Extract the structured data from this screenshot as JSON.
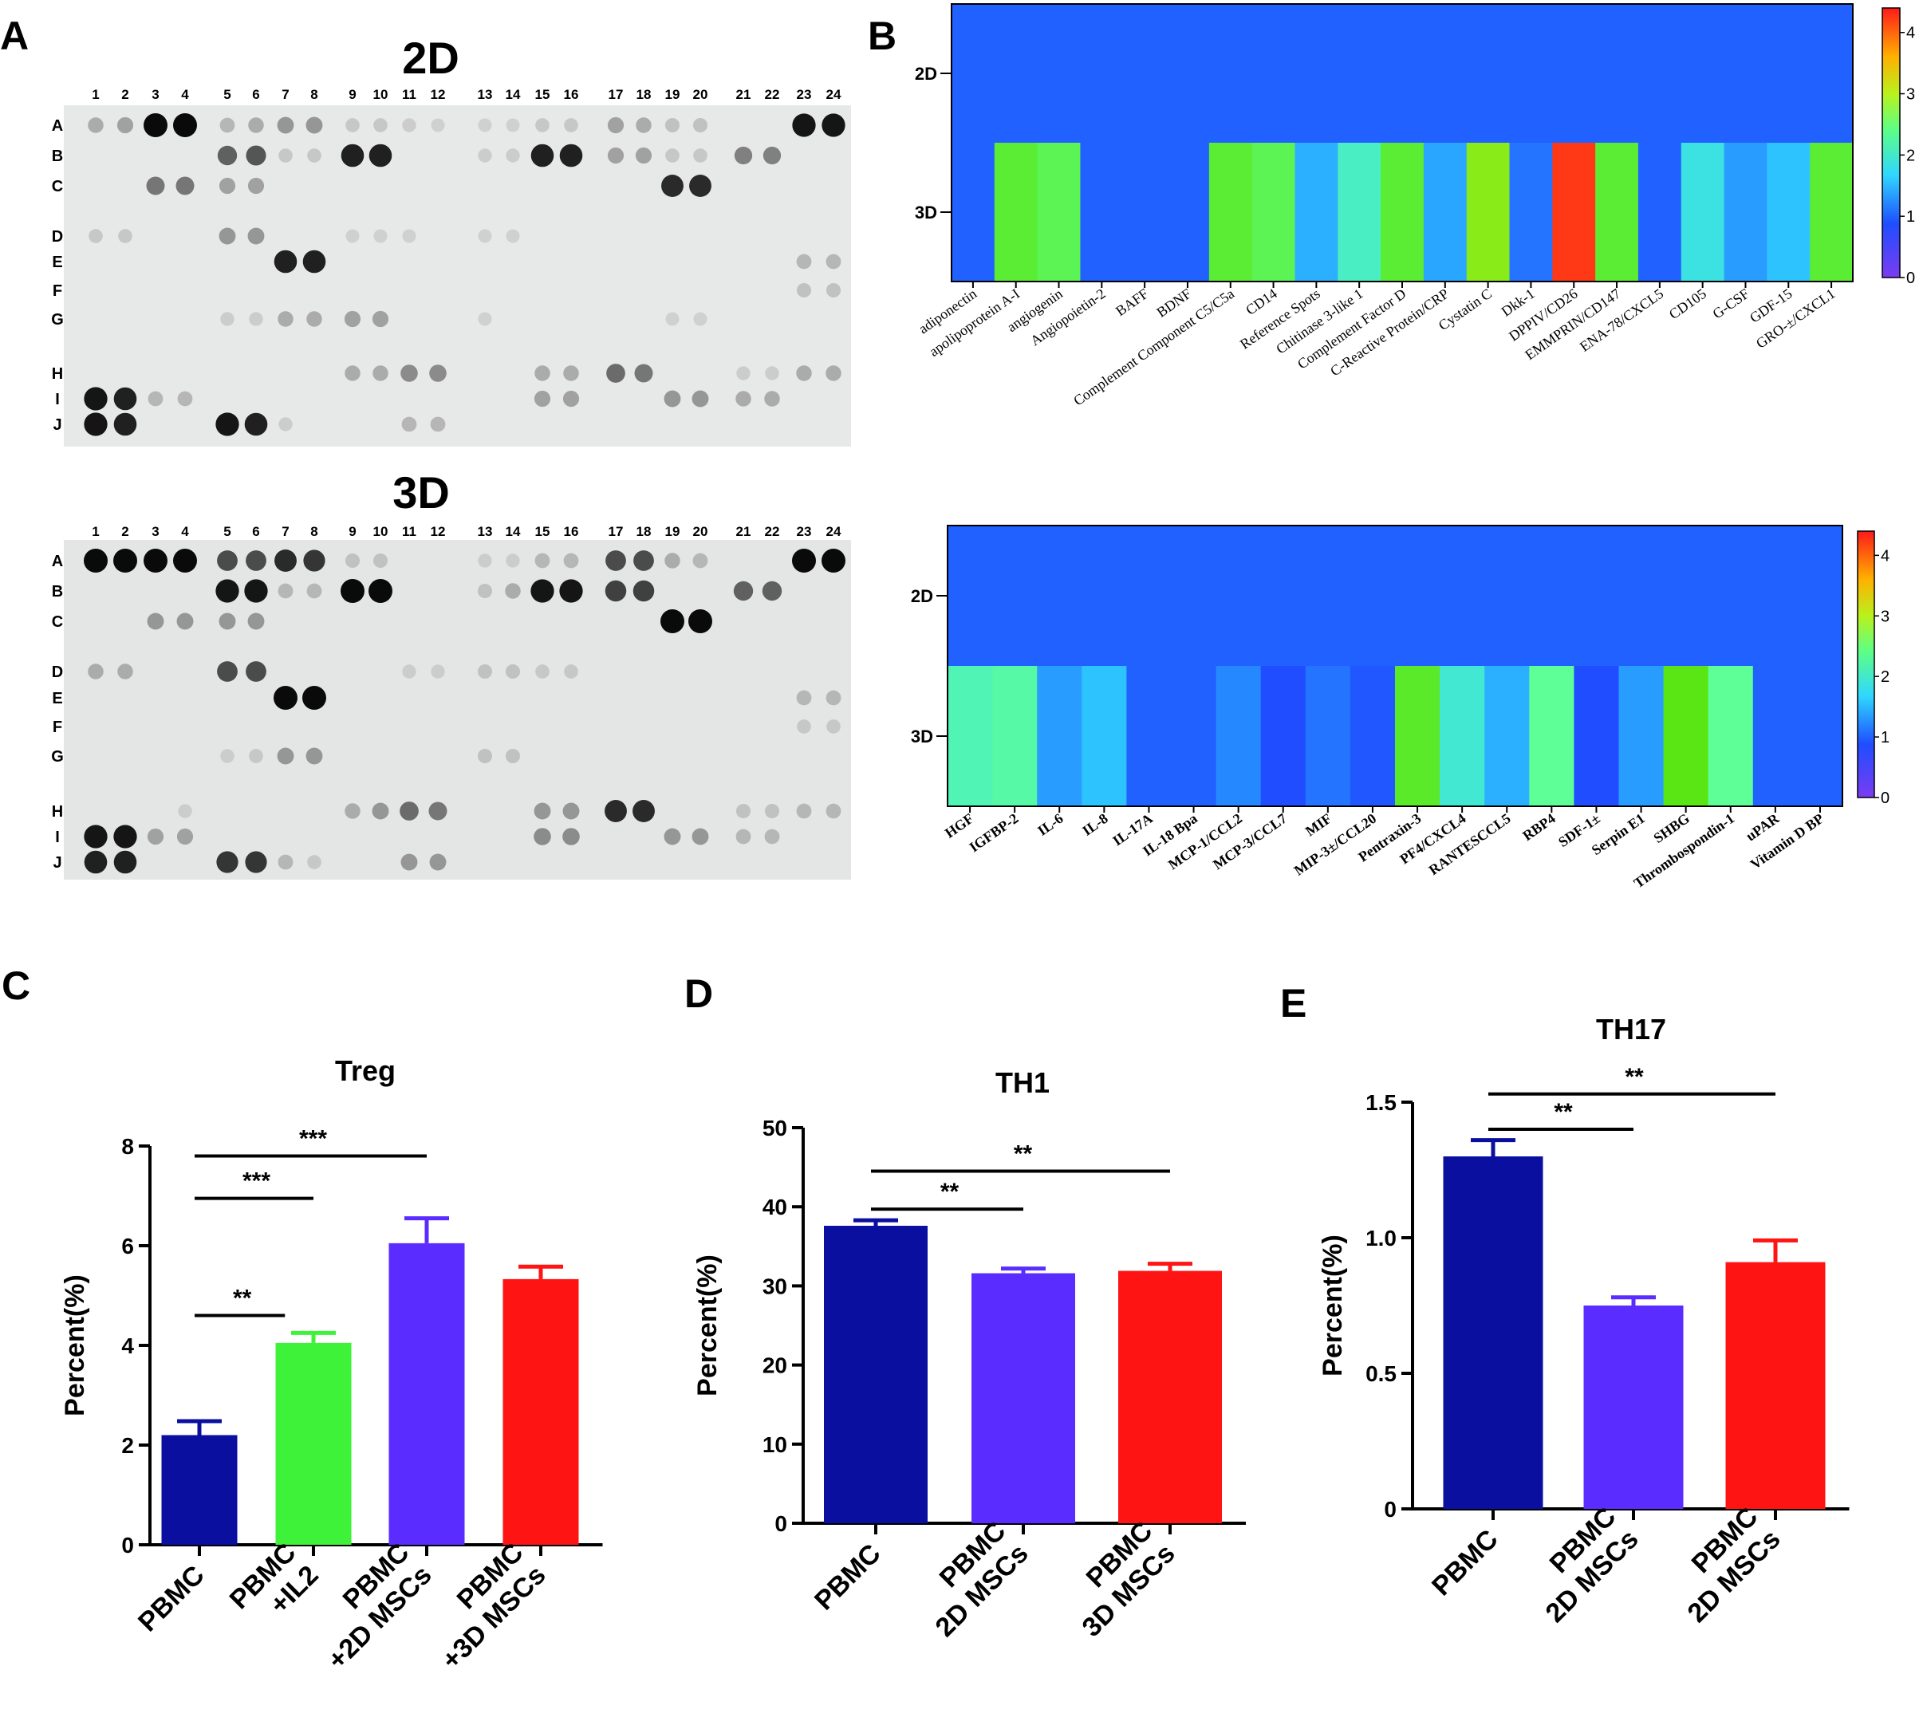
{
  "panels": {
    "A": "A",
    "B": "B",
    "C": "C",
    "D": "D",
    "E": "E"
  },
  "blots": [
    {
      "title": "2D",
      "columns": [
        "1",
        "2",
        "3",
        "4",
        "5",
        "6",
        "7",
        "8",
        "9",
        "10",
        "11",
        "12",
        "13",
        "14",
        "15",
        "16",
        "17",
        "18",
        "19",
        "20",
        "21",
        "22",
        "23",
        "24"
      ],
      "rows": [
        "A",
        "B",
        "C",
        "D",
        "E",
        "F",
        "G",
        "H",
        "I",
        "J"
      ],
      "spots": [
        [
          "A",
          1,
          0.25
        ],
        [
          "A",
          2,
          0.3
        ],
        [
          "A",
          3,
          1
        ],
        [
          "A",
          4,
          1
        ],
        [
          "A",
          5,
          0.2
        ],
        [
          "A",
          6,
          0.25
        ],
        [
          "A",
          7,
          0.35
        ],
        [
          "A",
          8,
          0.35
        ],
        [
          "A",
          9,
          0.12
        ],
        [
          "A",
          10,
          0.12
        ],
        [
          "A",
          11,
          0.1
        ],
        [
          "A",
          12,
          0.08
        ],
        [
          "A",
          13,
          0.08
        ],
        [
          "A",
          14,
          0.08
        ],
        [
          "A",
          15,
          0.12
        ],
        [
          "A",
          16,
          0.12
        ],
        [
          "A",
          17,
          0.3
        ],
        [
          "A",
          18,
          0.25
        ],
        [
          "A",
          19,
          0.15
        ],
        [
          "A",
          20,
          0.15
        ],
        [
          "A",
          23,
          0.95
        ],
        [
          "A",
          24,
          0.95
        ],
        [
          "B",
          5,
          0.6
        ],
        [
          "B",
          6,
          0.65
        ],
        [
          "B",
          7,
          0.12
        ],
        [
          "B",
          8,
          0.12
        ],
        [
          "B",
          9,
          0.9
        ],
        [
          "B",
          10,
          0.9
        ],
        [
          "B",
          13,
          0.1
        ],
        [
          "B",
          14,
          0.1
        ],
        [
          "B",
          15,
          0.9
        ],
        [
          "B",
          16,
          0.9
        ],
        [
          "B",
          17,
          0.3
        ],
        [
          "B",
          18,
          0.3
        ],
        [
          "B",
          19,
          0.12
        ],
        [
          "B",
          20,
          0.12
        ],
        [
          "B",
          21,
          0.45
        ],
        [
          "B",
          22,
          0.45
        ],
        [
          "C",
          3,
          0.5
        ],
        [
          "C",
          4,
          0.5
        ],
        [
          "C",
          5,
          0.3
        ],
        [
          "C",
          6,
          0.3
        ],
        [
          "C",
          19,
          0.85
        ],
        [
          "C",
          20,
          0.85
        ],
        [
          "D",
          1,
          0.12
        ],
        [
          "D",
          2,
          0.12
        ],
        [
          "D",
          5,
          0.35
        ],
        [
          "D",
          6,
          0.35
        ],
        [
          "D",
          9,
          0.08
        ],
        [
          "D",
          10,
          0.08
        ],
        [
          "D",
          11,
          0.08
        ],
        [
          "D",
          13,
          0.08
        ],
        [
          "D",
          14,
          0.08
        ],
        [
          "E",
          7,
          0.9
        ],
        [
          "E",
          8,
          0.9
        ],
        [
          "E",
          23,
          0.2
        ],
        [
          "E",
          24,
          0.2
        ],
        [
          "F",
          23,
          0.15
        ],
        [
          "F",
          24,
          0.15
        ],
        [
          "G",
          5,
          0.1
        ],
        [
          "G",
          6,
          0.1
        ],
        [
          "G",
          7,
          0.25
        ],
        [
          "G",
          8,
          0.25
        ],
        [
          "G",
          9,
          0.3
        ],
        [
          "G",
          10,
          0.3
        ],
        [
          "G",
          13,
          0.08
        ],
        [
          "G",
          19,
          0.08
        ],
        [
          "G",
          20,
          0.08
        ],
        [
          "H",
          9,
          0.25
        ],
        [
          "H",
          10,
          0.25
        ],
        [
          "H",
          11,
          0.4
        ],
        [
          "H",
          12,
          0.4
        ],
        [
          "H",
          15,
          0.25
        ],
        [
          "H",
          16,
          0.25
        ],
        [
          "H",
          17,
          0.55
        ],
        [
          "H",
          18,
          0.5
        ],
        [
          "H",
          21,
          0.1
        ],
        [
          "H",
          22,
          0.1
        ],
        [
          "H",
          23,
          0.25
        ],
        [
          "H",
          24,
          0.25
        ],
        [
          "I",
          1,
          0.95
        ],
        [
          "I",
          2,
          0.9
        ],
        [
          "I",
          3,
          0.2
        ],
        [
          "I",
          4,
          0.2
        ],
        [
          "I",
          15,
          0.3
        ],
        [
          "I",
          16,
          0.3
        ],
        [
          "I",
          19,
          0.35
        ],
        [
          "I",
          20,
          0.35
        ],
        [
          "I",
          21,
          0.25
        ],
        [
          "I",
          22,
          0.25
        ],
        [
          "J",
          1,
          0.95
        ],
        [
          "J",
          2,
          0.9
        ],
        [
          "J",
          5,
          0.95
        ],
        [
          "J",
          6,
          0.9
        ],
        [
          "J",
          7,
          0.1
        ],
        [
          "J",
          11,
          0.2
        ],
        [
          "J",
          12,
          0.2
        ]
      ]
    },
    {
      "title": "3D",
      "columns": [
        "1",
        "2",
        "3",
        "4",
        "5",
        "6",
        "7",
        "8",
        "9",
        "10",
        "11",
        "12",
        "13",
        "14",
        "15",
        "16",
        "17",
        "18",
        "19",
        "20",
        "21",
        "22",
        "23",
        "24"
      ],
      "rows": [
        "A",
        "B",
        "C",
        "D",
        "E",
        "F",
        "G",
        "H",
        "I",
        "J"
      ],
      "spots": [
        [
          "A",
          1,
          1
        ],
        [
          "A",
          2,
          1
        ],
        [
          "A",
          3,
          1
        ],
        [
          "A",
          4,
          1
        ],
        [
          "A",
          5,
          0.7
        ],
        [
          "A",
          6,
          0.7
        ],
        [
          "A",
          7,
          0.85
        ],
        [
          "A",
          8,
          0.8
        ],
        [
          "A",
          9,
          0.15
        ],
        [
          "A",
          10,
          0.15
        ],
        [
          "A",
          13,
          0.1
        ],
        [
          "A",
          14,
          0.1
        ],
        [
          "A",
          15,
          0.2
        ],
        [
          "A",
          16,
          0.2
        ],
        [
          "A",
          17,
          0.7
        ],
        [
          "A",
          18,
          0.7
        ],
        [
          "A",
          19,
          0.25
        ],
        [
          "A",
          20,
          0.2
        ],
        [
          "A",
          23,
          1
        ],
        [
          "A",
          24,
          1
        ],
        [
          "B",
          5,
          0.95
        ],
        [
          "B",
          6,
          0.95
        ],
        [
          "B",
          7,
          0.2
        ],
        [
          "B",
          8,
          0.2
        ],
        [
          "B",
          9,
          1
        ],
        [
          "B",
          10,
          1
        ],
        [
          "B",
          13,
          0.15
        ],
        [
          "B",
          14,
          0.25
        ],
        [
          "B",
          15,
          0.95
        ],
        [
          "B",
          16,
          0.95
        ],
        [
          "B",
          17,
          0.75
        ],
        [
          "B",
          18,
          0.75
        ],
        [
          "B",
          21,
          0.6
        ],
        [
          "B",
          22,
          0.6
        ],
        [
          "C",
          3,
          0.35
        ],
        [
          "C",
          4,
          0.35
        ],
        [
          "C",
          5,
          0.35
        ],
        [
          "C",
          6,
          0.35
        ],
        [
          "C",
          19,
          1
        ],
        [
          "C",
          20,
          1
        ],
        [
          "D",
          1,
          0.25
        ],
        [
          "D",
          2,
          0.25
        ],
        [
          "D",
          5,
          0.7
        ],
        [
          "D",
          6,
          0.7
        ],
        [
          "D",
          11,
          0.1
        ],
        [
          "D",
          12,
          0.1
        ],
        [
          "D",
          13,
          0.15
        ],
        [
          "D",
          14,
          0.15
        ],
        [
          "D",
          15,
          0.12
        ],
        [
          "D",
          16,
          0.12
        ],
        [
          "E",
          7,
          1
        ],
        [
          "E",
          8,
          1
        ],
        [
          "E",
          23,
          0.2
        ],
        [
          "E",
          24,
          0.2
        ],
        [
          "F",
          23,
          0.12
        ],
        [
          "F",
          24,
          0.12
        ],
        [
          "G",
          5,
          0.1
        ],
        [
          "G",
          6,
          0.12
        ],
        [
          "G",
          7,
          0.35
        ],
        [
          "G",
          8,
          0.35
        ],
        [
          "G",
          13,
          0.15
        ],
        [
          "G",
          14,
          0.15
        ],
        [
          "H",
          4,
          0.1
        ],
        [
          "H",
          9,
          0.25
        ],
        [
          "H",
          10,
          0.35
        ],
        [
          "H",
          11,
          0.55
        ],
        [
          "H",
          12,
          0.5
        ],
        [
          "H",
          15,
          0.35
        ],
        [
          "H",
          16,
          0.35
        ],
        [
          "H",
          17,
          0.85
        ],
        [
          "H",
          18,
          0.85
        ],
        [
          "H",
          21,
          0.15
        ],
        [
          "H",
          22,
          0.15
        ],
        [
          "H",
          23,
          0.2
        ],
        [
          "H",
          24,
          0.2
        ],
        [
          "I",
          1,
          0.95
        ],
        [
          "I",
          2,
          0.95
        ],
        [
          "I",
          3,
          0.3
        ],
        [
          "I",
          4,
          0.3
        ],
        [
          "I",
          15,
          0.4
        ],
        [
          "I",
          16,
          0.4
        ],
        [
          "I",
          19,
          0.35
        ],
        [
          "I",
          20,
          0.35
        ],
        [
          "I",
          21,
          0.2
        ],
        [
          "I",
          22,
          0.2
        ],
        [
          "J",
          1,
          0.9
        ],
        [
          "J",
          2,
          0.9
        ],
        [
          "J",
          5,
          0.8
        ],
        [
          "J",
          6,
          0.8
        ],
        [
          "J",
          7,
          0.2
        ],
        [
          "J",
          8,
          0.12
        ],
        [
          "J",
          11,
          0.35
        ],
        [
          "J",
          12,
          0.35
        ]
      ]
    }
  ],
  "chart_data": [
    {
      "type": "heatmap",
      "rows": [
        "2D",
        "3D"
      ],
      "columns": [
        "adiponectin",
        "apolipoprotein A-I",
        "angiogenin",
        "Angiopoietin-2",
        "BAFF",
        "BDNF",
        "Complement Component C5/C5a",
        "CD14",
        "Reference Spots",
        "Chitinase 3-like 1",
        "Complement Factor D",
        "C-Reactive Protein/CRP",
        "Cystatin C",
        "Dkk-1",
        "DPPIV/CD26",
        "EMMPRIN/CD147",
        "ENA-78/CXCL5",
        "CD105",
        "G-CSF",
        "GDF-15",
        "GRO-±/CXCL1"
      ],
      "values": [
        [
          1,
          1,
          1,
          1,
          1,
          1,
          1,
          1,
          1,
          1,
          1,
          1,
          1,
          1,
          1,
          1,
          1,
          1,
          1,
          1,
          1
        ],
        [
          1.0,
          2.75,
          2.6,
          1.0,
          1.0,
          1.0,
          2.75,
          2.6,
          1.4,
          2.0,
          2.75,
          1.35,
          3.1,
          1.1,
          4.2,
          2.75,
          1.0,
          1.8,
          1.3,
          1.5,
          2.75
        ]
      ],
      "colorbar": {
        "ticks": [
          "0",
          "1",
          "2",
          "3",
          "4"
        ],
        "min": 0,
        "max": 4.4
      }
    },
    {
      "type": "heatmap",
      "rows": [
        "2D",
        "3D"
      ],
      "columns": [
        "HGF",
        "IGFBP-2",
        "IL-6",
        "IL-8",
        "IL-17A",
        "IL-18 Bpa",
        "MCP-1/CCL2",
        "MCP-3/CCL7",
        "MIF",
        "MIP-3±/CCL20",
        "Pentraxin-3",
        "PF4/CXCL4",
        "RANTESCCL5",
        "RBP4",
        "SDF-1±",
        "Serpin E1",
        "SHBG",
        "Thrombospondin-1",
        "uPAR",
        "Vitamin D BP"
      ],
      "values": [
        [
          1,
          1,
          1,
          1,
          1,
          1,
          1,
          1,
          1,
          1,
          1,
          1,
          1,
          1,
          1,
          1,
          1,
          1,
          1,
          1
        ],
        [
          2.1,
          2.2,
          1.3,
          1.5,
          1.0,
          1.0,
          1.2,
          0.9,
          1.1,
          0.95,
          2.8,
          1.9,
          1.4,
          2.3,
          0.9,
          1.3,
          2.9,
          2.3,
          1.0,
          1.0
        ]
      ],
      "colorbar": {
        "ticks": [
          "0",
          "1",
          "2",
          "3",
          "4"
        ],
        "min": 0,
        "max": 4.4
      }
    },
    {
      "type": "bar",
      "title": "Treg",
      "ylabel": "Percent(%)",
      "ylim": [
        0,
        8
      ],
      "yticks": [
        "0",
        "2",
        "4",
        "6",
        "8"
      ],
      "categories": [
        [
          "PBMC"
        ],
        [
          "PBMC",
          "+IL2"
        ],
        [
          "PBMC",
          "+2D MSCs"
        ],
        [
          "PBMC",
          "+3D MSCs"
        ]
      ],
      "values": [
        2.2,
        4.05,
        6.05,
        5.33
      ],
      "errors": [
        0.28,
        0.2,
        0.5,
        0.25
      ],
      "colors": [
        "#0a0fa0",
        "#3ef23a",
        "#5a2cff",
        "#ff1414"
      ],
      "significance": [
        {
          "from": 0,
          "to": 2,
          "label": "***",
          "y": 7.8
        },
        {
          "from": 0,
          "to": 1,
          "label": "***",
          "y": 6.95
        },
        {
          "from": 0,
          "to": 0.75,
          "label": "**",
          "y": 4.6
        }
      ]
    },
    {
      "type": "bar",
      "title": "TH1",
      "ylabel": "Percent(%)",
      "ylim": [
        0,
        50
      ],
      "yticks": [
        "0",
        "10",
        "20",
        "30",
        "40",
        "50"
      ],
      "categories": [
        [
          "PBMC"
        ],
        [
          "PBMC",
          "2D MSCs"
        ],
        [
          "PBMC",
          "3D MSCs"
        ]
      ],
      "values": [
        37.6,
        31.6,
        31.9
      ],
      "errors": [
        0.7,
        0.6,
        0.9
      ],
      "colors": [
        "#0a0fa0",
        "#5a2cff",
        "#ff1414"
      ],
      "significance": [
        {
          "from": 0,
          "to": 2,
          "label": "**",
          "y": 44.5
        },
        {
          "from": 0,
          "to": 1,
          "label": "**",
          "y": 39.7
        }
      ]
    },
    {
      "type": "bar",
      "title": "TH17",
      "ylabel": "Percent(%)",
      "ylim": [
        0,
        1.5
      ],
      "yticks": [
        "0",
        "0.5",
        "1.0",
        "1.5"
      ],
      "categories": [
        [
          "PBMC"
        ],
        [
          "PBMC",
          "2D MSCs"
        ],
        [
          "PBMC",
          "2D MSCs"
        ]
      ],
      "values": [
        1.3,
        0.75,
        0.91
      ],
      "errors": [
        0.06,
        0.03,
        0.08
      ],
      "colors": [
        "#0a0fa0",
        "#5a2cff",
        "#ff1414"
      ],
      "significance": [
        {
          "from": 0,
          "to": 2,
          "label": "**",
          "y": 1.53
        },
        {
          "from": 0,
          "to": 1,
          "label": "**",
          "y": 1.4
        }
      ]
    }
  ]
}
